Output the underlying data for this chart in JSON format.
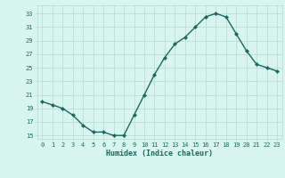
{
  "x": [
    0,
    1,
    2,
    3,
    4,
    5,
    6,
    7,
    8,
    9,
    10,
    11,
    12,
    13,
    14,
    15,
    16,
    17,
    18,
    19,
    20,
    21,
    22,
    23
  ],
  "y": [
    20,
    19.5,
    19,
    18,
    16.5,
    15.5,
    15.5,
    15,
    15,
    18,
    21,
    24,
    26.5,
    28.5,
    29.5,
    31,
    32.5,
    33,
    32.5,
    30,
    27.5,
    25.5,
    25,
    24.5
  ],
  "line_color": "#1a6b5a",
  "bg_color": "#d8f5f0",
  "grid_color": "#b8d8d0",
  "xlabel": "Humidex (Indice chaleur)",
  "tick_color": "#1a6b5a",
  "yticks": [
    15,
    17,
    19,
    21,
    23,
    25,
    27,
    29,
    31,
    33
  ],
  "xticks": [
    0,
    1,
    2,
    3,
    4,
    5,
    6,
    7,
    8,
    9,
    10,
    11,
    12,
    13,
    14,
    15,
    16,
    17,
    18,
    19,
    20,
    21,
    22,
    23
  ],
  "ylim": [
    14.5,
    34.2
  ],
  "xlim": [
    -0.5,
    23.5
  ]
}
